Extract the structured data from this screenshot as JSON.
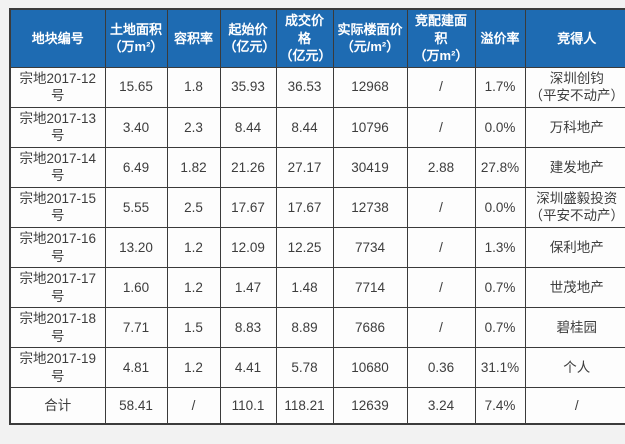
{
  "table": {
    "columns": [
      {
        "label": "地块编号"
      },
      {
        "label": "土地面积\n（万m²）"
      },
      {
        "label": "容积率"
      },
      {
        "label": "起始价\n（亿元）"
      },
      {
        "label": "成交价格\n（亿元）"
      },
      {
        "label": "实际楼面价\n（元/m²）"
      },
      {
        "label": "竞配建面积\n（万m²）"
      },
      {
        "label": "溢价率"
      },
      {
        "label": "竞得人"
      }
    ],
    "rows": [
      [
        "宗地2017-12号",
        "15.65",
        "1.8",
        "35.93",
        "36.53",
        "12968",
        "/",
        "1.7%",
        "深圳创钧\n（平安不动产）"
      ],
      [
        "宗地2017-13号",
        "3.40",
        "2.3",
        "8.44",
        "8.44",
        "10796",
        "/",
        "0.0%",
        "万科地产"
      ],
      [
        "宗地2017-14号",
        "6.49",
        "1.82",
        "21.26",
        "27.17",
        "30419",
        "2.88",
        "27.8%",
        "建发地产"
      ],
      [
        "宗地2017-15号",
        "5.55",
        "2.5",
        "17.67",
        "17.67",
        "12738",
        "/",
        "0.0%",
        "深圳盛毅投资\n（平安不动产）"
      ],
      [
        "宗地2017-16号",
        "13.20",
        "1.2",
        "12.09",
        "12.25",
        "7734",
        "/",
        "1.3%",
        "保利地产"
      ],
      [
        "宗地2017-17号",
        "1.60",
        "1.2",
        "1.47",
        "1.48",
        "7714",
        "/",
        "0.7%",
        "世茂地产"
      ],
      [
        "宗地2017-18号",
        "7.71",
        "1.5",
        "8.83",
        "8.89",
        "7686",
        "/",
        "0.7%",
        "碧桂园"
      ],
      [
        "宗地2017-19号",
        "4.81",
        "1.2",
        "4.41",
        "5.78",
        "10680",
        "0.36",
        "31.1%",
        "个人"
      ]
    ],
    "total_row": [
      "合计",
      "58.41",
      "/",
      "110.1",
      "118.21",
      "12639",
      "3.24",
      "7.4%",
      "/"
    ]
  },
  "colors": {
    "header_bg": "#1e6bb2",
    "header_text": "#ffffff",
    "border": "#3b3b3b",
    "body_text": "#3d3d3d",
    "page_bg": "#f2f2f2"
  }
}
